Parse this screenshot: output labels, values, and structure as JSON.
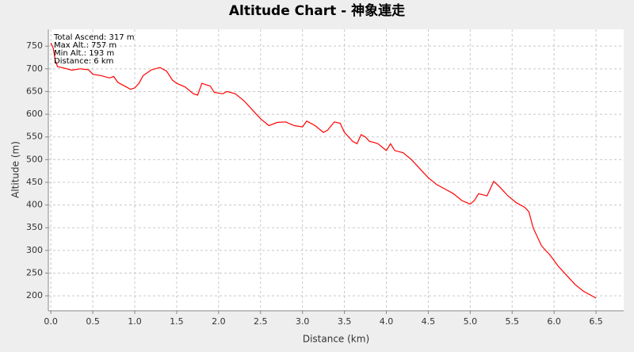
{
  "chart_data": {
    "type": "line",
    "title": "Altitude Chart - 神象連走",
    "x_label": "Distance (km)",
    "y_label": "Altitude (m)",
    "annotations": [
      "Total Ascend: 317 m",
      "Max Alt.: 757 m",
      "Min Alt.: 193 m",
      "Distance: 6 km"
    ],
    "color": "#ff0000",
    "grid": true,
    "xlim": [
      -0.03,
      6.83
    ],
    "ylim": [
      167,
      787
    ],
    "xticks": [
      {
        "value": 0,
        "label": "0.0"
      },
      {
        "value": 0.5,
        "label": "0.5"
      },
      {
        "value": 1,
        "label": "1.0"
      },
      {
        "value": 1.5,
        "label": "1.5"
      },
      {
        "value": 2,
        "label": "2.0"
      },
      {
        "value": 2.5,
        "label": "2.5"
      },
      {
        "value": 3,
        "label": "3.0"
      },
      {
        "value": 3.5,
        "label": "3.5"
      },
      {
        "value": 4,
        "label": "4.0"
      },
      {
        "value": 4.5,
        "label": "4.5"
      },
      {
        "value": 5,
        "label": "5.0"
      },
      {
        "value": 5.5,
        "label": "5.5"
      },
      {
        "value": 6,
        "label": "6.0"
      },
      {
        "value": 6.5,
        "label": "6.5"
      }
    ],
    "yticks": [
      200,
      250,
      300,
      350,
      400,
      450,
      500,
      550,
      600,
      650,
      700,
      750
    ],
    "x": [
      0.0,
      0.03,
      0.05,
      0.08,
      0.15,
      0.25,
      0.35,
      0.45,
      0.5,
      0.6,
      0.7,
      0.75,
      0.8,
      0.9,
      0.95,
      1.0,
      1.05,
      1.1,
      1.2,
      1.3,
      1.38,
      1.45,
      1.5,
      1.6,
      1.7,
      1.75,
      1.8,
      1.85,
      1.9,
      1.95,
      2.05,
      2.1,
      2.2,
      2.3,
      2.4,
      2.5,
      2.6,
      2.7,
      2.8,
      2.9,
      3.0,
      3.05,
      3.15,
      3.25,
      3.3,
      3.38,
      3.45,
      3.5,
      3.6,
      3.65,
      3.7,
      3.75,
      3.8,
      3.85,
      3.9,
      4.0,
      4.05,
      4.1,
      4.2,
      4.3,
      4.4,
      4.5,
      4.6,
      4.7,
      4.8,
      4.9,
      5.0,
      5.05,
      5.1,
      5.2,
      5.28,
      5.35,
      5.45,
      5.55,
      5.65,
      5.7,
      5.75,
      5.85,
      5.95,
      6.05,
      6.15,
      6.25,
      6.35,
      6.5
    ],
    "values": [
      757,
      745,
      720,
      705,
      702,
      697,
      700,
      698,
      688,
      685,
      680,
      683,
      670,
      660,
      655,
      658,
      668,
      685,
      698,
      703,
      695,
      675,
      668,
      660,
      645,
      642,
      668,
      665,
      662,
      648,
      645,
      650,
      645,
      630,
      610,
      590,
      575,
      582,
      583,
      575,
      572,
      585,
      575,
      560,
      565,
      583,
      580,
      560,
      540,
      535,
      555,
      550,
      540,
      538,
      535,
      520,
      535,
      520,
      515,
      500,
      480,
      460,
      445,
      435,
      425,
      410,
      402,
      410,
      425,
      420,
      452,
      440,
      420,
      405,
      395,
      385,
      350,
      310,
      290,
      265,
      245,
      225,
      210,
      195
    ]
  }
}
